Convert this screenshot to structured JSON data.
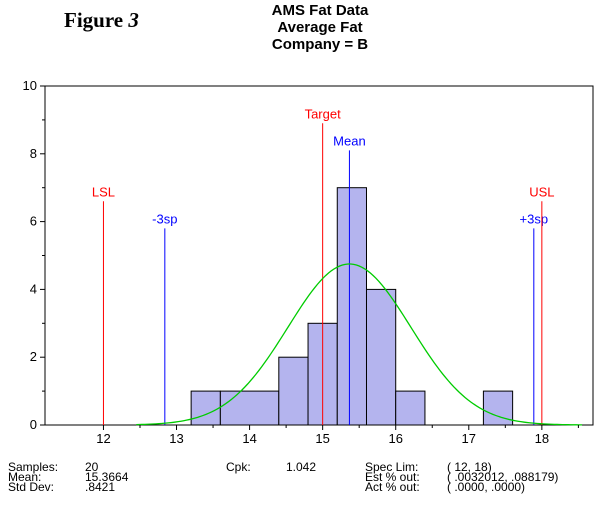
{
  "figure_label": {
    "prefix": "Figure",
    "number": "3"
  },
  "chart_data": {
    "type": "bar",
    "title": [
      "AMS Fat Data",
      "Average Fat",
      "Company = B"
    ],
    "x_ticks": [
      12,
      13,
      14,
      15,
      16,
      17,
      18
    ],
    "y_ticks": [
      0,
      2,
      4,
      6,
      8,
      10
    ],
    "xlim": [
      11.2,
      18.7
    ],
    "ylim": [
      0,
      10
    ],
    "bins": [
      {
        "x0": 13.2,
        "x1": 13.6,
        "count": 1
      },
      {
        "x0": 13.6,
        "x1": 14.4,
        "count": 1
      },
      {
        "x0": 14.4,
        "x1": 14.8,
        "count": 2
      },
      {
        "x0": 14.8,
        "x1": 15.2,
        "count": 3
      },
      {
        "x0": 15.2,
        "x1": 15.6,
        "count": 7
      },
      {
        "x0": 15.6,
        "x1": 16.0,
        "count": 4
      },
      {
        "x0": 16.0,
        "x1": 16.4,
        "count": 1
      },
      {
        "x0": 17.2,
        "x1": 17.6,
        "count": 1
      }
    ],
    "normal_curve": {
      "mean": 15.3664,
      "sd": 0.8421,
      "peak": 4.75,
      "x_range": [
        12.45,
        18.55
      ]
    },
    "ref_lines": [
      {
        "label": "LSL",
        "x": 12,
        "y_top": 6.6,
        "color": "#ff0000"
      },
      {
        "label": "-3sp",
        "x": 12.84,
        "y_top": 5.8,
        "color": "#0000ff"
      },
      {
        "label": "Target",
        "x": 15.0,
        "y_top": 8.9,
        "color": "#ff0000"
      },
      {
        "label": "Mean",
        "x": 15.3664,
        "y_top": 8.1,
        "color": "#0000ff"
      },
      {
        "label": "+3sp",
        "x": 17.89,
        "y_top": 5.8,
        "color": "#0000ff"
      },
      {
        "label": "USL",
        "x": 18,
        "y_top": 6.6,
        "color": "#ff0000"
      }
    ],
    "colors": {
      "bar_fill": "#b4b4ee",
      "bar_stroke": "#000000",
      "curve": "#00cc00"
    }
  },
  "stats": {
    "samples_label": "Samples:",
    "samples": "20",
    "mean_label": "Mean:",
    "mean": "15.3664",
    "stddev_label": "Std Dev:",
    "stddev": ".8421",
    "cpk_label": "Cpk:",
    "cpk": "1.042",
    "spec_lim_label": "Spec Lim:",
    "spec_lim": "(  12,    18)",
    "est_out_label": "Est % out:",
    "est_out": "(  .0032012,    .088179)",
    "act_out_label": "Act % out:",
    "act_out": "(  .0000,   .0000)"
  }
}
